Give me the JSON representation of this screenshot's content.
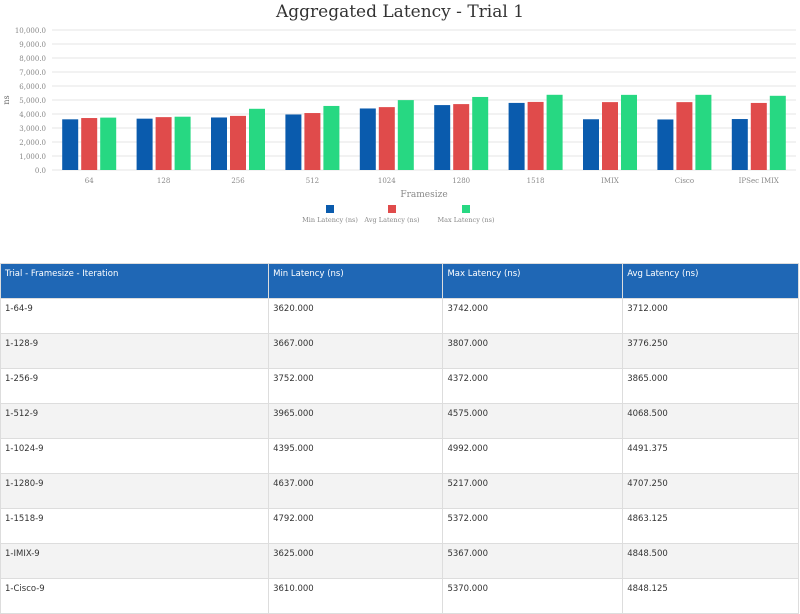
{
  "chart_data": {
    "type": "bar",
    "title": "Aggregated Latency - Trial 1",
    "xlabel": "Framesize",
    "ylabel": "ns",
    "ylim": [
      0,
      10000
    ],
    "yticks": [
      "0.0",
      "1,000.0",
      "2,000.0",
      "3,000.0",
      "4,000.0",
      "5,000.0",
      "6,000.0",
      "7,000.0",
      "8,000.0",
      "9,000.0",
      "10,000.0"
    ],
    "categories": [
      "64",
      "128",
      "256",
      "512",
      "1024",
      "1280",
      "1518",
      "IMIX",
      "Cisco",
      "IPSec IMIX"
    ],
    "series": [
      {
        "name": "Min Latency (ns)",
        "color": "#0a5bad",
        "values": [
          3620,
          3667,
          3752,
          3965,
          4395,
          4637,
          4792,
          3625,
          3610,
          3640
        ]
      },
      {
        "name": "Avg Latency (ns)",
        "color": "#e04b4b",
        "values": [
          3712,
          3776.25,
          3865,
          4068.5,
          4491.375,
          4707.25,
          4863.125,
          4848.5,
          4848.125,
          4790
        ]
      },
      {
        "name": "Max Latency (ns)",
        "color": "#27d882",
        "values": [
          3742,
          3807,
          4372,
          4575,
          4992,
          5217,
          5372,
          5367,
          5370,
          5300
        ]
      }
    ],
    "legend": "bottom-center",
    "grid": true
  },
  "table": {
    "headers": [
      "Trial - Framesize - Iteration",
      "Min Latency (ns)",
      "Max Latency (ns)",
      "Avg Latency (ns)"
    ],
    "rows": [
      [
        "1-64-9",
        "3620.000",
        "3742.000",
        "3712.000"
      ],
      [
        "1-128-9",
        "3667.000",
        "3807.000",
        "3776.250"
      ],
      [
        "1-256-9",
        "3752.000",
        "4372.000",
        "3865.000"
      ],
      [
        "1-512-9",
        "3965.000",
        "4575.000",
        "4068.500"
      ],
      [
        "1-1024-9",
        "4395.000",
        "4992.000",
        "4491.375"
      ],
      [
        "1-1280-9",
        "4637.000",
        "5217.000",
        "4707.250"
      ],
      [
        "1-1518-9",
        "4792.000",
        "5372.000",
        "4863.125"
      ],
      [
        "1-IMIX-9",
        "3625.000",
        "5367.000",
        "4848.500"
      ],
      [
        "1-Cisco-9",
        "3610.000",
        "5370.000",
        "4848.125"
      ]
    ]
  }
}
